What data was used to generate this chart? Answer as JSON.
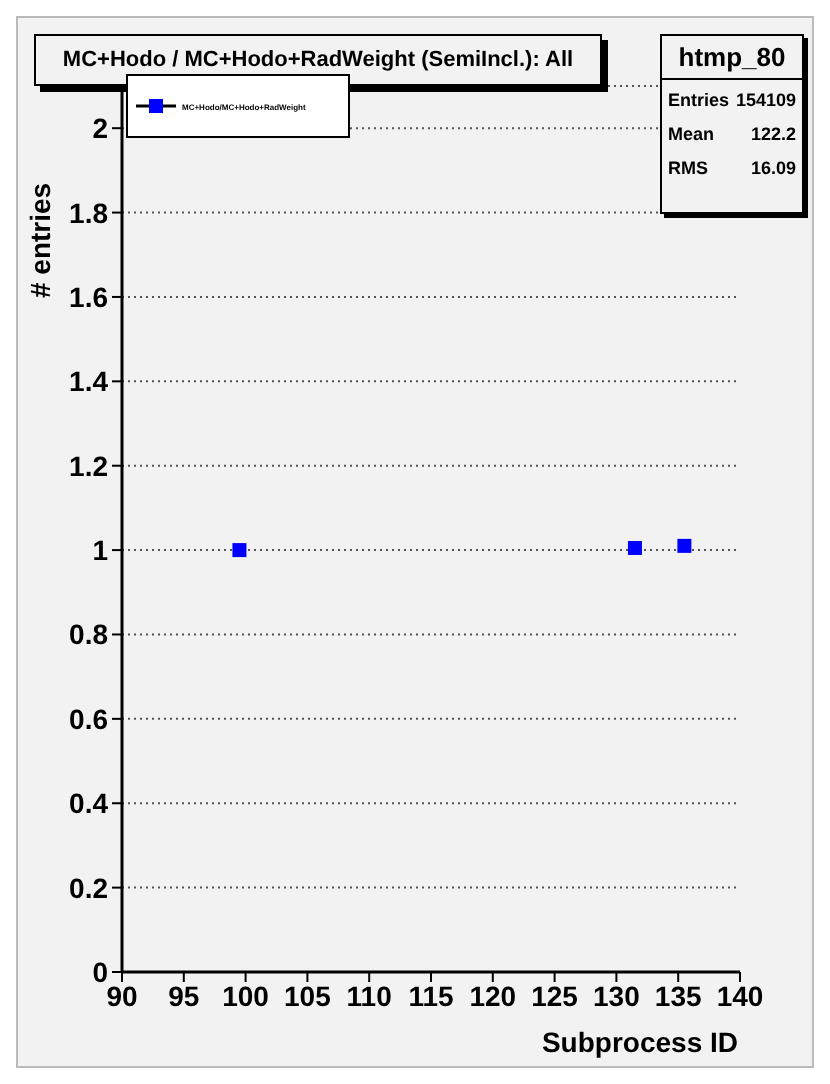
{
  "chart_data": {
    "type": "scatter",
    "title": "MC+Hodo / MC+Hodo+RadWeight (SemiIncl.): All",
    "xlabel": "Subprocess ID",
    "ylabel": "# entries",
    "annotations": [
      "htmp_80",
      "Entries 154109",
      "Mean 122.2",
      "RMS 16.09"
    ],
    "series": [
      {
        "name": "MC+Hodo/MC+Hodo+RadWeight",
        "color": "#0000ff",
        "x": [
          99.5,
          131.5,
          135.5
        ],
        "values": [
          1,
          1.005,
          1.01
        ]
      }
    ],
    "xlim": [
      90,
      140
    ],
    "xticks": [
      90,
      95,
      100,
      105,
      110,
      115,
      120,
      125,
      130,
      135,
      140
    ],
    "ylim": [
      0,
      2.1
    ],
    "yticks": [
      0,
      0.2,
      0.4,
      0.6,
      0.8,
      1,
      1.2,
      1.4,
      1.6,
      1.8,
      2
    ],
    "grid": "y",
    "legend": "top left",
    "marker": "square"
  }
}
